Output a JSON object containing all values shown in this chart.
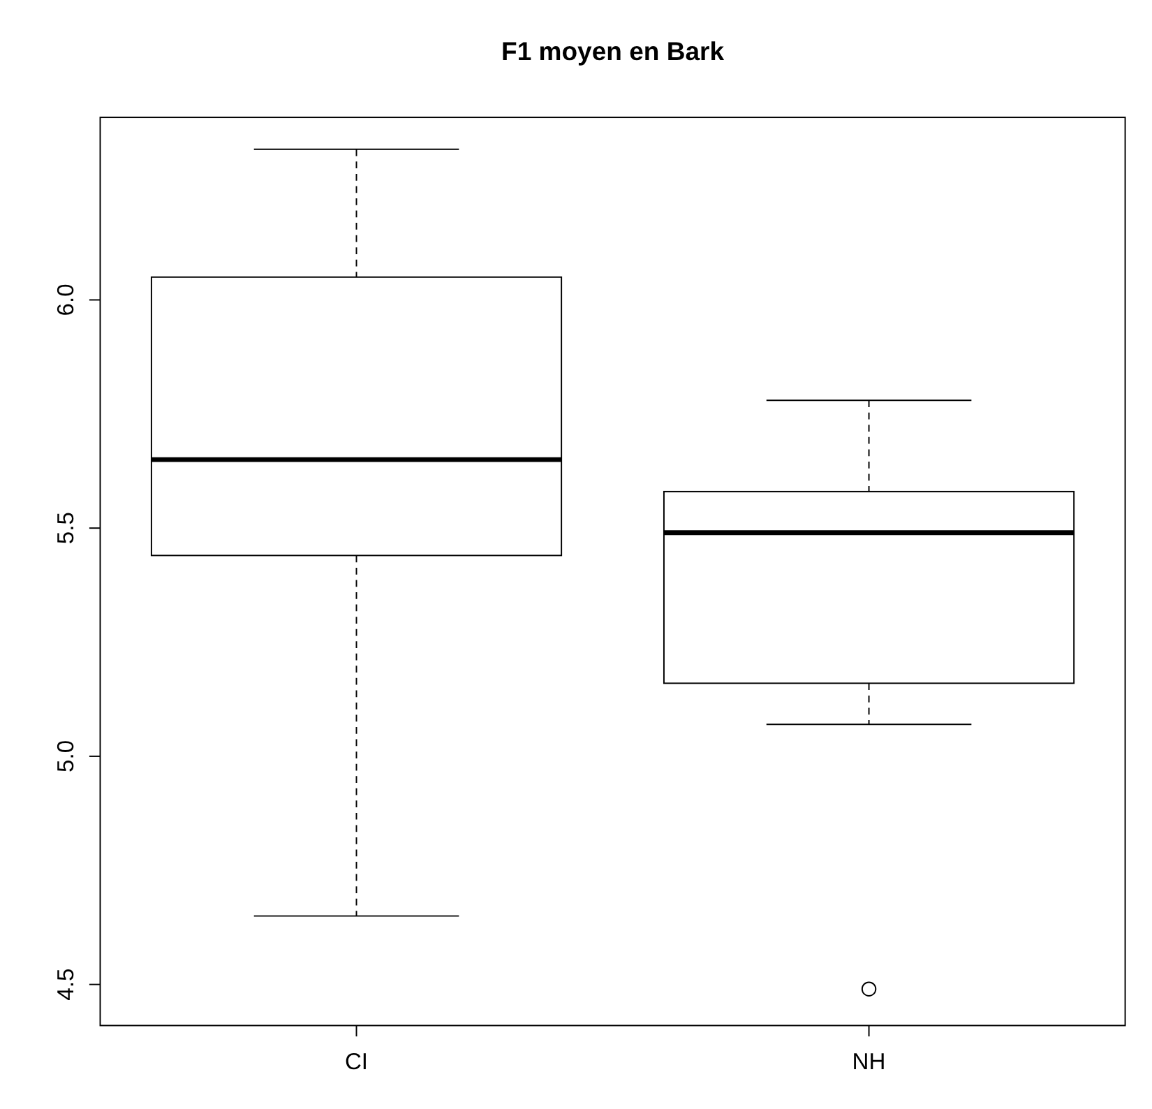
{
  "chart_data": {
    "type": "box",
    "title": "F1 moyen en Bark",
    "categories": [
      "CI",
      "NH"
    ],
    "boxes": [
      {
        "low": 4.65,
        "q1": 5.44,
        "median": 5.65,
        "q3": 6.05,
        "high": 6.33
      },
      {
        "low": 5.07,
        "q1": 5.16,
        "median": 5.49,
        "q3": 5.58,
        "high": 5.78,
        "outliers": [
          4.49
        ]
      }
    ],
    "ylim": [
      4.41,
      6.4
    ],
    "yticks": [
      {
        "value": 4.5,
        "label": "4.5"
      },
      {
        "value": 5,
        "label": "5.0"
      },
      {
        "value": 5.5,
        "label": "5.5"
      },
      {
        "value": 6,
        "label": "6.0"
      }
    ],
    "grid": false
  }
}
